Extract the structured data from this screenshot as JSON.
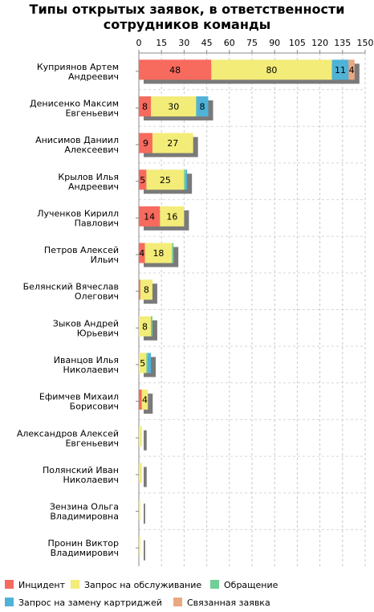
{
  "chart_data": {
    "type": "bar",
    "orientation": "horizontal",
    "stacked": true,
    "title_line1": "Типы открытых заявок, в ответственности",
    "title_line2": "сотрудников команды",
    "xlim": [
      0,
      150
    ],
    "xticks": [
      "0",
      "15",
      "30",
      "45",
      "60",
      "75",
      "90",
      "105",
      "120",
      "135",
      "150"
    ],
    "grid": true,
    "legend_position": "bottom",
    "categories": [
      [
        "Куприянов Артем",
        "Андреевич"
      ],
      [
        "Денисенко Максим",
        "Евгеньевич"
      ],
      [
        "Анисимов Даниил",
        "Алексеевич"
      ],
      [
        "Крылов Илья",
        "Андреевич"
      ],
      [
        "Лученков Кирилл",
        "Павлович"
      ],
      [
        "Петров Алексей",
        "Ильич"
      ],
      [
        "Белянский Вячеслав",
        "Олегович"
      ],
      [
        "Зыков Андрей",
        "Юрьевич"
      ],
      [
        "Иванцов Илья",
        "Николаевич"
      ],
      [
        "Ефимчев Михаил",
        "Борисович"
      ],
      [
        "Александров Алексей",
        "Евгеньевич"
      ],
      [
        "Полянский Иван",
        "Николаевич"
      ],
      [
        "Зензина Ольга",
        "Владимировна"
      ],
      [
        "Пронин Виктор",
        "Владимирович"
      ]
    ],
    "series": [
      {
        "name": "Инцидент",
        "color": "#f76a5e",
        "values": [
          48,
          8,
          9,
          5,
          14,
          4,
          1,
          0,
          0,
          2,
          0,
          0,
          0,
          0
        ],
        "labels": [
          "48",
          "8",
          "9",
          "5",
          "14",
          "4",
          "",
          "",
          "",
          "",
          "",
          "",
          "",
          ""
        ]
      },
      {
        "name": "Запрос на обслуживание",
        "color": "#f3ec78",
        "values": [
          80,
          30,
          27,
          25,
          16,
          18,
          8,
          8,
          5,
          4,
          2,
          2,
          1,
          1
        ],
        "labels": [
          "80",
          "30",
          "27",
          "25",
          "16",
          "18",
          "8",
          "8",
          "5",
          "4",
          "",
          "",
          "",
          ""
        ]
      },
      {
        "name": "Обращение",
        "color": "#6fcf97",
        "values": [
          0,
          0,
          0,
          1,
          0,
          1,
          0,
          1,
          1,
          0,
          0,
          0,
          0,
          0
        ],
        "labels": [
          "",
          "",
          "",
          "",
          "",
          "",
          "",
          "",
          "",
          "",
          "",
          "",
          "",
          ""
        ]
      },
      {
        "name": "Запрос на замену картриджей",
        "color": "#4fb3d8",
        "values": [
          11,
          8,
          0,
          1,
          0,
          0,
          0,
          0,
          2,
          0,
          0,
          0,
          0,
          0
        ],
        "labels": [
          "11",
          "8",
          "",
          "",
          "",
          "",
          "",
          "",
          "",
          "",
          "",
          "",
          "",
          ""
        ]
      },
      {
        "name": "Связанная заявка",
        "color": "#e9a882",
        "values": [
          4,
          0,
          0,
          0,
          0,
          0,
          0,
          0,
          0,
          0,
          0,
          0,
          0,
          0
        ],
        "labels": [
          "4",
          "",
          "",
          "",
          "",
          "",
          "",
          "",
          "",
          "",
          "",
          "",
          "",
          ""
        ]
      }
    ]
  }
}
